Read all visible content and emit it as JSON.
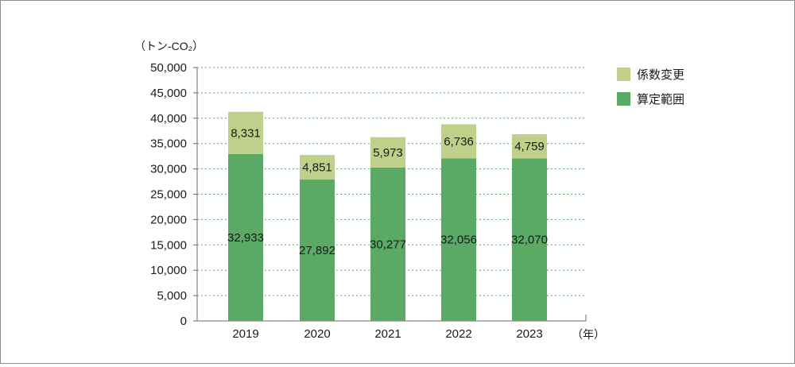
{
  "chart_data": {
    "type": "bar",
    "stacked": true,
    "title": "",
    "ylabel": "（トン-CO₂）",
    "xlabel": "（年）",
    "categories": [
      "2019",
      "2020",
      "2021",
      "2022",
      "2023"
    ],
    "series": [
      {
        "name": "算定範囲",
        "values": [
          32933,
          27892,
          30277,
          32056,
          32070
        ],
        "labels": [
          "32,933",
          "27,892",
          "30,277",
          "32,056",
          "32,070"
        ],
        "color": "#5aa964"
      },
      {
        "name": "係数変更",
        "values": [
          8331,
          4851,
          5973,
          6736,
          4759
        ],
        "labels": [
          "8,331",
          "4,851",
          "5,973",
          "6,736",
          "4,759"
        ],
        "color": "#bfd08a"
      }
    ],
    "ylim": [
      0,
      50000
    ],
    "yticks": [
      "0",
      "5,000",
      "10,000",
      "15,000",
      "20,000",
      "25,000",
      "30,000",
      "35,000",
      "40,000",
      "45,000",
      "50,000"
    ],
    "grid": true,
    "legend_position": "top-right",
    "legend": [
      {
        "name": "係数変更",
        "color": "#bfd08a"
      },
      {
        "name": "算定範囲",
        "color": "#5aa964"
      }
    ]
  }
}
